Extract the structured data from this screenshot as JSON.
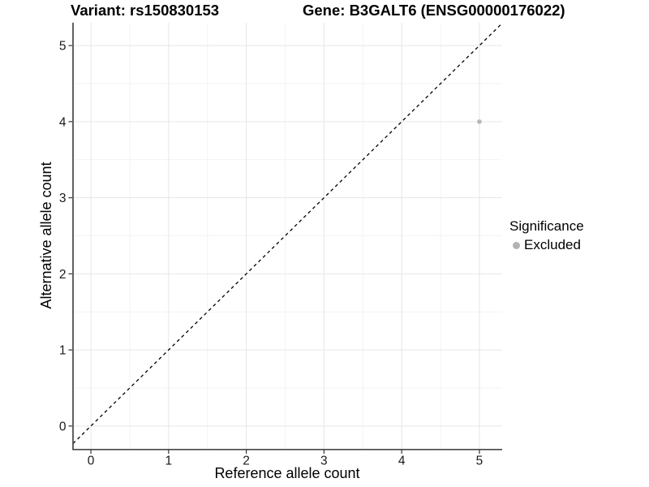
{
  "titles": {
    "variant": "Variant: rs150830153",
    "gene": "Gene: B3GALT6 (ENSG00000176022)"
  },
  "axes": {
    "x_label": "Reference allele count",
    "y_label": "Alternative allele count"
  },
  "legend": {
    "title": "Significance",
    "items": [
      {
        "label": "Excluded",
        "color": "#b3b3b3"
      }
    ]
  },
  "chart_data": {
    "type": "scatter",
    "title": "Variant: rs150830153 — Gene: B3GALT6 (ENSG00000176022)",
    "xlabel": "Reference allele count",
    "ylabel": "Alternative allele count",
    "points": [
      {
        "x": 5,
        "y": 4,
        "series": "Excluded"
      }
    ],
    "series": [
      {
        "name": "Excluded",
        "color": "#b5b5b5"
      }
    ],
    "xlim": [
      -0.23,
      5.293
    ],
    "ylim": [
      -0.3,
      5.3
    ],
    "x_ticks": [
      0,
      1,
      2,
      3,
      4,
      5
    ],
    "y_ticks": [
      0,
      1,
      2,
      3,
      4,
      5
    ],
    "x_minor_ticks": [
      0.5,
      1.5,
      2.5,
      3.5,
      4.5
    ],
    "y_minor_ticks": [
      0.5,
      1.5,
      2.5,
      3.5,
      4.5
    ],
    "reference_line": {
      "slope": 1,
      "intercept": 0,
      "style": "dashed",
      "color": "#000000"
    },
    "grid": true,
    "legend_position": "right",
    "legend_title": "Significance"
  }
}
